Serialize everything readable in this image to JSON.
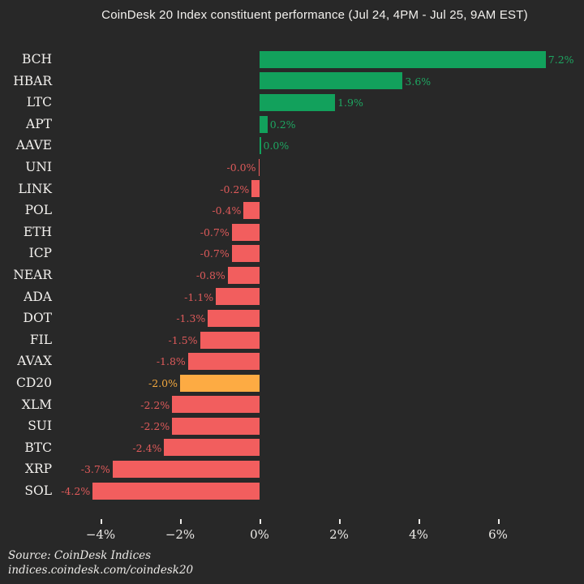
{
  "title": "CoinDesk 20 Index constituent performance (Jul 24, 4PM - Jul 25, 9AM EST)",
  "source": {
    "line1": "Source: CoinDesk Indices",
    "line2": "indices.coindesk.com/coindesk20"
  },
  "colors": {
    "background": "#282828",
    "positive_bar": "#12a15c",
    "negative_bar": "#f25e5e",
    "highlight_bar": "#fdab43",
    "positive_label": "#1ea661",
    "negative_label": "#de5a5a",
    "highlight_label": "#f3a83e",
    "text": "#f3f1ee",
    "tick_text": "#eceae7"
  },
  "chart_data": {
    "type": "bar",
    "orientation": "horizontal",
    "title": "CoinDesk 20 Index constituent performance (Jul 24, 4PM - Jul 25, 9AM EST)",
    "categories": [
      "BCH",
      "HBAR",
      "LTC",
      "APT",
      "AAVE",
      "UNI",
      "LINK",
      "POL",
      "ETH",
      "ICP",
      "NEAR",
      "ADA",
      "DOT",
      "FIL",
      "AVAX",
      "CD20",
      "XLM",
      "SUI",
      "BTC",
      "XRP",
      "SOL"
    ],
    "values": [
      7.2,
      3.6,
      1.9,
      0.2,
      0.0,
      -0.0,
      -0.2,
      -0.4,
      -0.7,
      -0.7,
      -0.8,
      -1.1,
      -1.3,
      -1.5,
      -1.8,
      -2.0,
      -2.2,
      -2.2,
      -2.4,
      -3.7,
      -4.2
    ],
    "value_labels": [
      "7.2%",
      "3.6%",
      "1.9%",
      "0.2%",
      "0.0%",
      "-0.0%",
      "-0.2%",
      "-0.4%",
      "-0.7%",
      "-0.7%",
      "-0.8%",
      "-1.1%",
      "-1.3%",
      "-1.5%",
      "-1.8%",
      "-2.0%",
      "-2.2%",
      "-2.2%",
      "-2.4%",
      "-3.7%",
      "-4.2%"
    ],
    "highlight_category": "CD20",
    "xlabel": "",
    "ylabel": "",
    "xlim": [
      -5.1,
      7.9
    ],
    "x_ticks": [
      "−4%",
      "−2%",
      "0%",
      "2%",
      "4%",
      "6%"
    ],
    "x_tick_values": [
      -4,
      -2,
      0,
      2,
      4,
      6
    ],
    "grid": false,
    "legend": false
  }
}
